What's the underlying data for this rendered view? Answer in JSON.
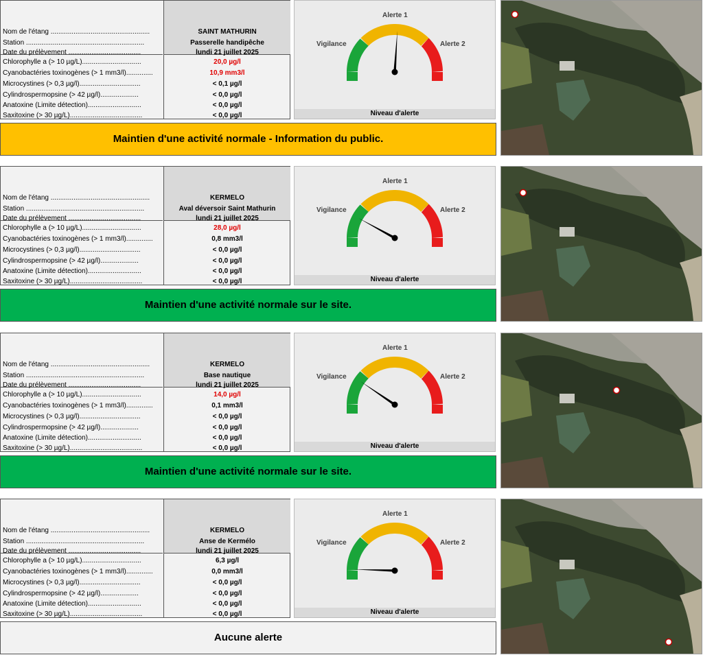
{
  "row_labels": {
    "nom": "Nom de l'étang ....................................................",
    "station": "Station ..............................................................",
    "date": "Date du prélèvement ......................................",
    "chloro": "Chlorophylle a (> 10 µg/L)...............................",
    "cyano": "Cyanobactéries toxinogènes (> 1 mm3/l)..............",
    "micro": "Microcystines (> 0,3 µg/l)................................",
    "cylindro": "Cylindrospermopsine (> 42 µg/l)....................",
    "anatox": "Anatoxine (Limite détection)............................",
    "saxi": "Saxitoxine (> 30 µg/L)......................................"
  },
  "gauge_labels": {
    "alerte1": "Alerte 1",
    "vigilance": "Vigilance",
    "alerte2": "Alerte 2",
    "footer": "Niveau d'alerte"
  },
  "colors": {
    "green": "#1aa53a",
    "yellow": "#f0b400",
    "red": "#e81c1c",
    "orange_banner": "#ffc000",
    "green_banner": "#00b050",
    "grey_banner": "#f2f2f2"
  },
  "stations": [
    {
      "etang": "SAINT MATHURIN",
      "station": "Passerelle handipêche",
      "date": "lundi 21 juillet 2025",
      "chloro": "20,0 µg/l",
      "chloro_red": true,
      "cyano": "10,9 mm3/l",
      "cyano_red": true,
      "micro": "< 0,1 µg/l",
      "cylindro": "< 0,0 µg/l",
      "anatox": "< 0,0 µg/l",
      "saxi": "< 0,0 µg/l",
      "gauge_level_fraction": 0.52,
      "banner": "Maintien d'une activité normale - Information du public.",
      "banner_color": "#ffc000"
    },
    {
      "etang": "KERMELO",
      "station": "Aval déversoir Saint Mathurin",
      "date": "lundi 21 juillet 2025",
      "chloro": "28,0 µg/l",
      "chloro_red": true,
      "cyano": "0,8 mm3/l",
      "cyano_red": false,
      "micro": "< 0,0 µg/l",
      "cylindro": "< 0,0 µg/l",
      "anatox": "< 0,0 µg/l",
      "saxi": "< 0,0 µg/l",
      "gauge_level_fraction": 0.16,
      "banner": "Maintien d'une activité normale sur le site.",
      "banner_color": "#00b050"
    },
    {
      "etang": "KERMELO",
      "station": "Base nautique",
      "date": "lundi 21 juillet 2025",
      "chloro": "14,0 µg/l",
      "chloro_red": true,
      "cyano": "0,1 mm3/l",
      "cyano_red": false,
      "micro": "< 0,0 µg/l",
      "cylindro": "< 0,0 µg/l",
      "anatox": "< 0,0 µg/l",
      "saxi": "< 0,0 µg/l",
      "gauge_level_fraction": 0.19,
      "banner": "Maintien d'une activité normale sur le site.",
      "banner_color": "#00b050"
    },
    {
      "etang": "KERMELO",
      "station": "Anse de Kermélo",
      "date": "lundi 21 juillet 2025",
      "chloro": "6,3 µg/l",
      "chloro_red": false,
      "cyano": "0,0 mm3/l",
      "cyano_red": false,
      "micro": "< 0,0 µg/l",
      "cylindro": "< 0,0 µg/l",
      "anatox": "< 0,0 µg/l",
      "saxi": "< 0,0 µg/l",
      "gauge_level_fraction": 0.01,
      "banner": "Aucune alerte",
      "banner_color": "#f2f2f2"
    }
  ]
}
